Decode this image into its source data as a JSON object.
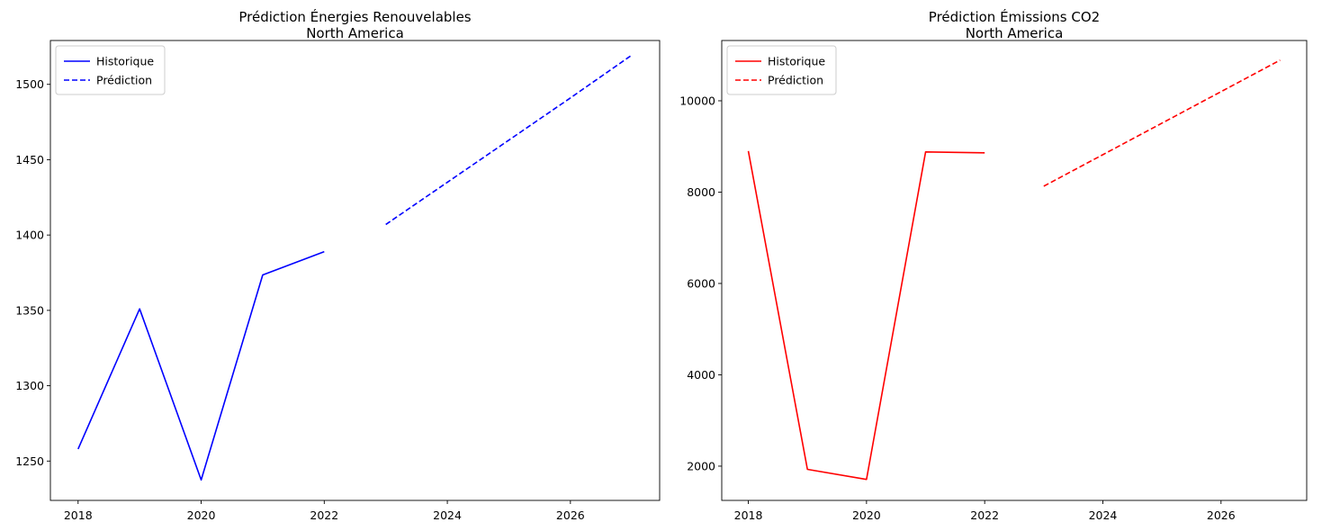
{
  "chart_data": [
    {
      "type": "line",
      "title": "Prédiction Énergies Renouvelables",
      "subtitle": "North America",
      "xlabel": "",
      "ylabel": "",
      "xlim": [
        2017.55,
        2027.45
      ],
      "ylim": [
        1223.9,
        1529.1
      ],
      "xticks": [
        2018,
        2020,
        2022,
        2024,
        2026
      ],
      "yticks": [
        1250,
        1300,
        1350,
        1400,
        1450,
        1500
      ],
      "grid": false,
      "legend_position": "top-left",
      "colors": {
        "line": "#0000ff"
      },
      "series": [
        {
          "name": "Historique",
          "style": "solid",
          "x": [
            2018,
            2019,
            2020,
            2021,
            2022
          ],
          "y": [
            1258,
            1351,
            1237.5,
            1373.5,
            1389
          ]
        },
        {
          "name": "Prédiction",
          "style": "dashed",
          "x": [
            2023,
            2024,
            2025,
            2026,
            2027
          ],
          "y": [
            1407,
            1435,
            1463,
            1491,
            1519.5
          ]
        }
      ]
    },
    {
      "type": "line",
      "title": "Prédiction Émissions CO2",
      "subtitle": "North America",
      "xlabel": "",
      "ylabel": "",
      "xlim": [
        2017.55,
        2027.45
      ],
      "ylim": [
        1250,
        11320
      ],
      "xticks": [
        2018,
        2020,
        2022,
        2024,
        2026
      ],
      "yticks": [
        2000,
        4000,
        6000,
        8000,
        10000
      ],
      "grid": false,
      "legend_position": "top-left",
      "colors": {
        "line": "#ff0000"
      },
      "series": [
        {
          "name": "Historique",
          "style": "solid",
          "x": [
            2018,
            2019,
            2020,
            2021,
            2022
          ],
          "y": [
            8900,
            1930,
            1710,
            8880,
            8860
          ]
        },
        {
          "name": "Prédiction",
          "style": "dashed",
          "x": [
            2023,
            2024,
            2025,
            2026,
            2027
          ],
          "y": [
            8130,
            8820,
            9510,
            10200,
            10890
          ]
        }
      ]
    }
  ]
}
